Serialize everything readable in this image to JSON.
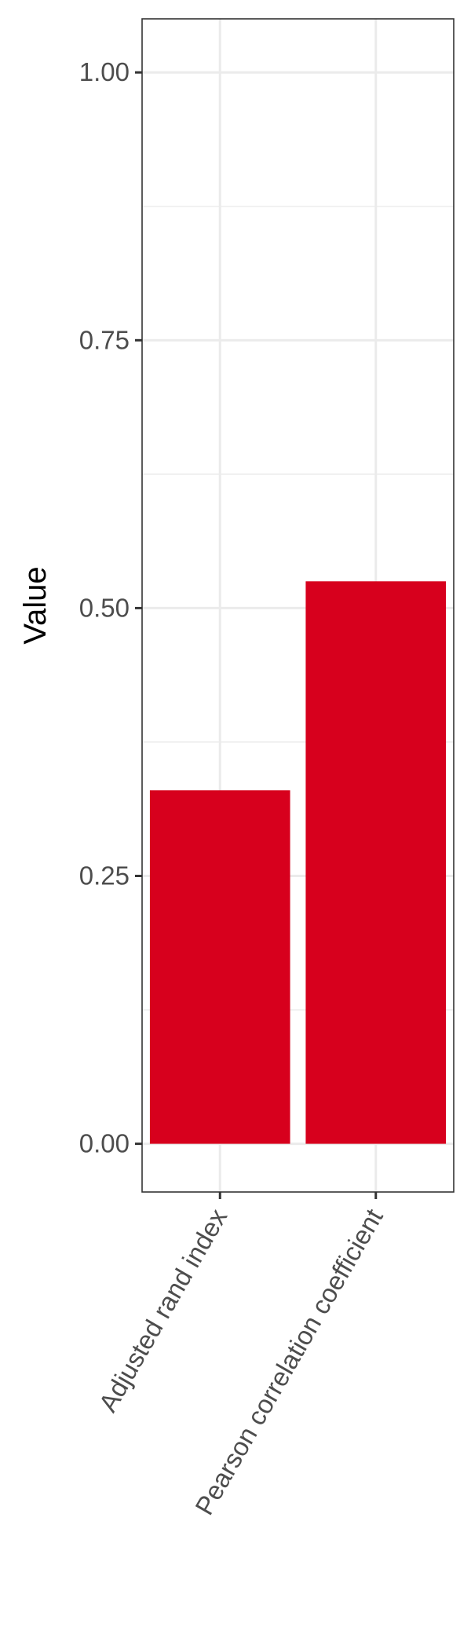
{
  "chart_data": {
    "type": "bar",
    "categories": [
      "Adjusted rand index",
      "Pearson correlation coefficient"
    ],
    "values": [
      0.33,
      0.525
    ],
    "ylabel": "Value",
    "xlabel": "",
    "ylim": [
      -0.045,
      1.05
    ],
    "yticks": [
      0.0,
      0.25,
      0.5,
      0.75,
      1.0
    ],
    "ytick_labels": [
      "0.00",
      "0.25",
      "0.50",
      "0.75",
      "1.00"
    ],
    "grid": true,
    "bar_color": "#d7001d",
    "grid_color": "#ebebeb",
    "panel_border_color": "#333333"
  }
}
